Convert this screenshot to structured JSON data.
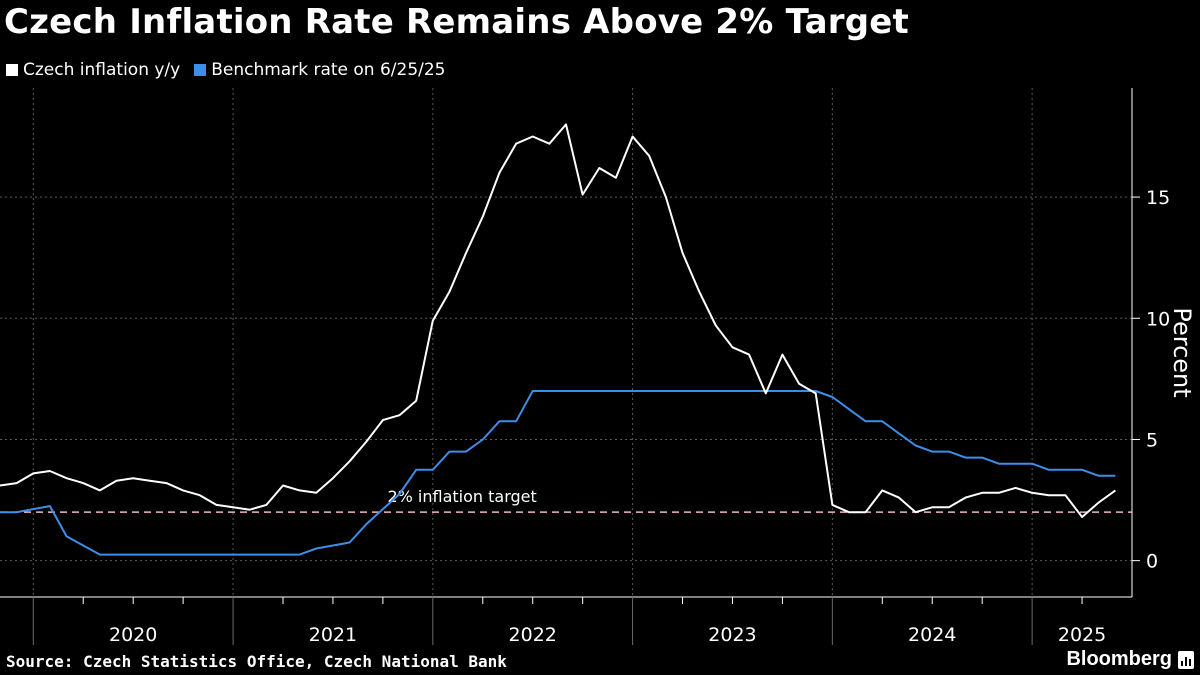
{
  "header": {
    "title": "Czech Inflation Rate Remains Above 2% Target"
  },
  "legend": [
    {
      "label": "Czech inflation y/y",
      "color": "#ffffff"
    },
    {
      "label": "Benchmark rate on 6/25/25",
      "color": "#3d8ee8"
    }
  ],
  "footer": {
    "source": "Source: Czech Statistics Office, Czech National Bank",
    "brand": "Bloomberg"
  },
  "chart_data": {
    "type": "line",
    "title": "Czech Inflation Rate Remains Above 2% Target",
    "ylabel": "Percent",
    "xlabel": "",
    "ylim": [
      -1.5,
      19.5
    ],
    "y_ticks": [
      0,
      5,
      10,
      15
    ],
    "x_tick_labels": [
      "2020",
      "2021",
      "2022",
      "2023",
      "2024",
      "2025"
    ],
    "x_range": [
      "2019-11",
      "2025-07"
    ],
    "grid": true,
    "legend_position": "top-left",
    "reference_line": {
      "value": 2,
      "label": "2% inflation target",
      "color": "#f4b6c6",
      "style": "dashed"
    },
    "series": [
      {
        "name": "Czech inflation y/y",
        "color": "#ffffff",
        "x": [
          "2019-11",
          "2019-12",
          "2020-01",
          "2020-02",
          "2020-03",
          "2020-04",
          "2020-05",
          "2020-06",
          "2020-07",
          "2020-08",
          "2020-09",
          "2020-10",
          "2020-11",
          "2020-12",
          "2021-01",
          "2021-02",
          "2021-03",
          "2021-04",
          "2021-05",
          "2021-06",
          "2021-07",
          "2021-08",
          "2021-09",
          "2021-10",
          "2021-11",
          "2021-12",
          "2022-01",
          "2022-02",
          "2022-03",
          "2022-04",
          "2022-05",
          "2022-06",
          "2022-07",
          "2022-08",
          "2022-09",
          "2022-10",
          "2022-11",
          "2022-12",
          "2023-01",
          "2023-02",
          "2023-03",
          "2023-04",
          "2023-05",
          "2023-06",
          "2023-07",
          "2023-08",
          "2023-09",
          "2023-10",
          "2023-11",
          "2023-12",
          "2024-01",
          "2024-02",
          "2024-03",
          "2024-04",
          "2024-05",
          "2024-06",
          "2024-07",
          "2024-08",
          "2024-09",
          "2024-10",
          "2024-11",
          "2024-12",
          "2025-01",
          "2025-02",
          "2025-03",
          "2025-04",
          "2025-05",
          "2025-06"
        ],
        "values": [
          3.1,
          3.2,
          3.6,
          3.7,
          3.4,
          3.2,
          2.9,
          3.3,
          3.4,
          3.3,
          3.2,
          2.9,
          2.7,
          2.3,
          2.2,
          2.1,
          2.3,
          3.1,
          2.9,
          2.8,
          3.4,
          4.1,
          4.9,
          5.8,
          6.0,
          6.6,
          9.9,
          11.1,
          12.7,
          14.2,
          16.0,
          17.2,
          17.5,
          17.2,
          18.0,
          15.1,
          16.2,
          15.8,
          17.5,
          16.7,
          15.0,
          12.7,
          11.1,
          9.7,
          8.8,
          8.5,
          6.9,
          8.5,
          7.3,
          6.9,
          2.3,
          2.0,
          2.0,
          2.9,
          2.6,
          2.0,
          2.2,
          2.2,
          2.6,
          2.8,
          2.8,
          3.0,
          2.8,
          2.7,
          2.7,
          1.8,
          2.4,
          2.9
        ]
      },
      {
        "name": "Benchmark rate on 6/25/25",
        "color": "#3d8ee8",
        "x": [
          "2019-11",
          "2019-12",
          "2020-02",
          "2020-03",
          "2020-05",
          "2021-05",
          "2021-06",
          "2021-08",
          "2021-09",
          "2021-11",
          "2021-12",
          "2022-01",
          "2022-02",
          "2022-03",
          "2022-04",
          "2022-05",
          "2022-06",
          "2022-07",
          "2023-12",
          "2024-01",
          "2024-02",
          "2024-03",
          "2024-04",
          "2024-05",
          "2024-06",
          "2024-07",
          "2024-08",
          "2024-09",
          "2024-10",
          "2024-11",
          "2024-12",
          "2025-01",
          "2025-02",
          "2025-03",
          "2025-04",
          "2025-05",
          "2025-06"
        ],
        "values": [
          2.0,
          2.0,
          2.25,
          1.0,
          0.25,
          0.25,
          0.5,
          0.75,
          1.5,
          2.75,
          3.75,
          3.75,
          4.5,
          4.5,
          5.0,
          5.75,
          5.75,
          7.0,
          7.0,
          6.75,
          6.25,
          5.75,
          5.75,
          5.25,
          4.75,
          4.5,
          4.5,
          4.25,
          4.25,
          4.0,
          4.0,
          4.0,
          3.75,
          3.75,
          3.75,
          3.5,
          3.5
        ]
      }
    ]
  }
}
